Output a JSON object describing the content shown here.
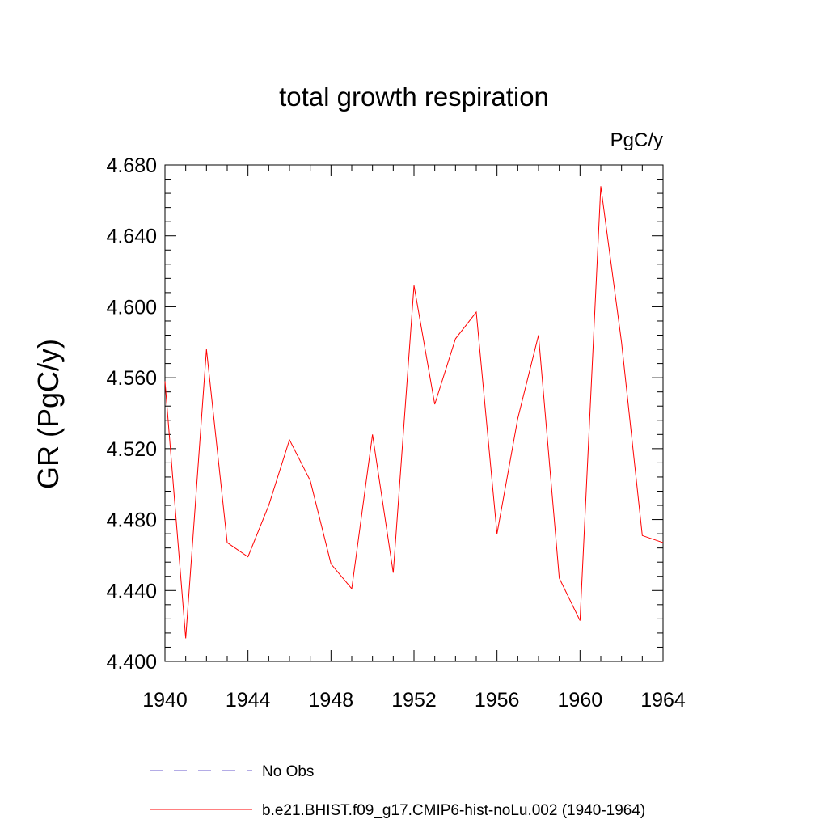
{
  "chart_data": {
    "type": "line",
    "title": "total growth respiration",
    "units": "PgC/y",
    "xlabel": "",
    "ylabel": "GR  (PgC/y)",
    "xlim": [
      1940,
      1964
    ],
    "ylim": [
      4.4,
      4.68
    ],
    "x_ticks": [
      "1940",
      "1944",
      "1948",
      "1952",
      "1956",
      "1960",
      "1964"
    ],
    "y_ticks": [
      "4.400",
      "4.440",
      "4.480",
      "4.520",
      "4.560",
      "4.600",
      "4.640",
      "4.680"
    ],
    "x": [
      1940,
      1941,
      1942,
      1943,
      1944,
      1945,
      1946,
      1947,
      1948,
      1949,
      1950,
      1951,
      1952,
      1953,
      1954,
      1955,
      1956,
      1957,
      1958,
      1959,
      1960,
      1961,
      1962,
      1963,
      1964
    ],
    "series": [
      {
        "name": "b.e21.BHIST.f09_g17.CMIP6-hist-noLu.002 (1940-1964)",
        "color": "#ff0000",
        "values": [
          4.558,
          4.413,
          4.576,
          4.467,
          4.459,
          4.488,
          4.525,
          4.502,
          4.455,
          4.441,
          4.528,
          4.45,
          4.612,
          4.545,
          4.582,
          4.597,
          4.472,
          4.537,
          4.584,
          4.447,
          4.423,
          4.668,
          4.58,
          4.471,
          4.467
        ]
      }
    ],
    "legend": {
      "placement": "bottom",
      "entries": [
        {
          "label": "No Obs",
          "color": "#6a5acd",
          "style": "dashed"
        },
        {
          "label": "b.e21.BHIST.f09_g17.CMIP6-hist-noLu.002 (1940-1964)",
          "color": "#ff0000",
          "style": "solid"
        }
      ]
    },
    "grid": false
  }
}
